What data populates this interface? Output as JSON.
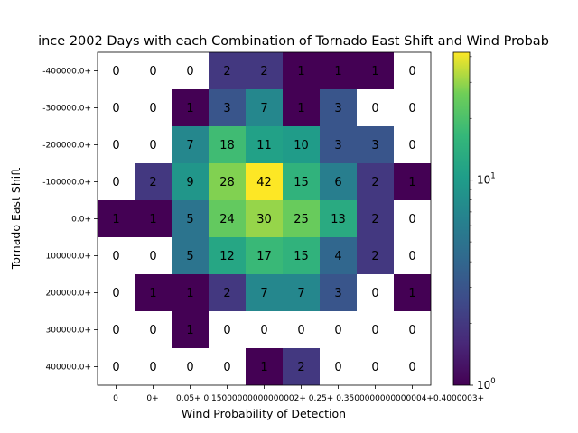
{
  "chart_data": {
    "type": "heatmap",
    "title": "ince 2002 Days with each Combination of Tornado East Shift and Wind Probab",
    "xlabel": "Wind Probability of Detection",
    "ylabel": "Tornado East Shift",
    "x_tick_labels": [
      "0",
      "0+",
      "0.05+",
      "0.1500000000000002+",
      "0.2",
      "0.25",
      "0.3500000000000004+",
      "0.4000003+",
      ""
    ],
    "x_tick_labels_rendered": [
      "0",
      "0+",
      "0.05+ 0.15000000000000002+ 0.25+ 0.3500000000000004+0.4000003+"
    ],
    "y_tick_labels": [
      "-400000.0+",
      "-300000.0+",
      "-200000.0+",
      "-100000.0+",
      "0.0+",
      "100000.0+",
      "200000.0+",
      "300000.0+",
      "400000.0+"
    ],
    "values": [
      [
        0,
        0,
        0,
        2,
        2,
        1,
        1,
        1,
        0
      ],
      [
        0,
        0,
        1,
        3,
        7,
        1,
        3,
        0,
        0
      ],
      [
        0,
        0,
        7,
        18,
        11,
        10,
        3,
        3,
        0
      ],
      [
        0,
        2,
        9,
        28,
        42,
        15,
        6,
        2,
        1
      ],
      [
        1,
        1,
        5,
        24,
        30,
        25,
        13,
        2,
        0
      ],
      [
        0,
        0,
        5,
        12,
        17,
        15,
        4,
        2,
        0
      ],
      [
        0,
        1,
        1,
        2,
        7,
        7,
        3,
        0,
        1
      ],
      [
        0,
        0,
        1,
        0,
        0,
        0,
        0,
        0,
        0
      ],
      [
        0,
        0,
        0,
        0,
        1,
        2,
        0,
        0,
        0
      ]
    ],
    "color_scale": "viridis",
    "log_scale": true,
    "colorbar_range": [
      1,
      42
    ],
    "colorbar_ticks": [
      {
        "value": 1,
        "base": "10",
        "exp": "0"
      },
      {
        "value": 10,
        "base": "10",
        "exp": "1"
      }
    ],
    "zero_cells_color": "#ffffff",
    "grid": false
  }
}
